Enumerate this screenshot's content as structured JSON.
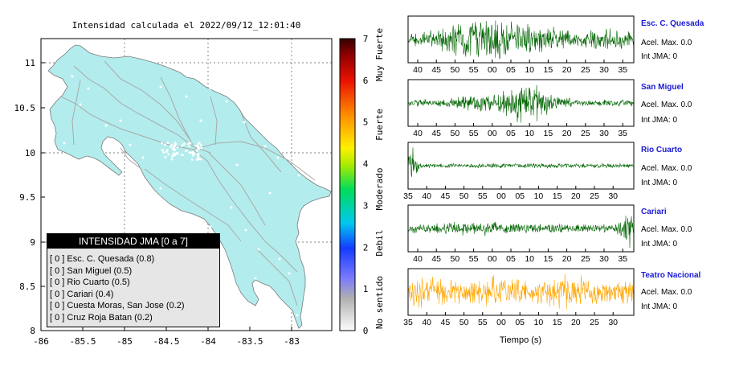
{
  "map": {
    "title": "Intensidad calculada el 2022/09/12_12:01:40",
    "x_ticks": [
      "-86",
      "-85.5",
      "-85",
      "-84.5",
      "-84",
      "-83.5",
      "-83"
    ],
    "y_ticks": [
      "11",
      "10.5",
      "10",
      "9.5",
      "9",
      "8.5",
      "8"
    ],
    "land_color": "#b3ecec",
    "road_color": "#a9a9a9"
  },
  "colorbar": {
    "ticks": [
      "7",
      "6",
      "5",
      "4",
      "3",
      "2",
      "1",
      "0"
    ],
    "labels": [
      "Muy Fuerte",
      "Fuerte",
      "Moderado",
      "Debil",
      "No sentido"
    ]
  },
  "legend": {
    "title": "INTENSIDAD JMA [0 a 7]",
    "entries": [
      "[ 0 ]  Esc. C. Quesada (0.8)",
      "[ 0 ]  San Miguel (0.5)",
      "[ 0 ]  Rio Cuarto (0.5)",
      "[ 0 ]  Cariari (0.4)",
      "[ 0 ]  Cuesta Moras, San Jose (0.2)",
      "[ 0 ]  Cruz Roja Batan (0.2)"
    ]
  },
  "traces": [
    {
      "name": "Esc. C. Quesada",
      "acel": "Acel. Max. 0.0",
      "jma": "Int JMA: 0",
      "color": "#006400",
      "ticks": [
        "40",
        "45",
        "50",
        "55",
        "00",
        "05",
        "10",
        "15",
        "20",
        "25",
        "30",
        "35"
      ]
    },
    {
      "name": "San Miguel",
      "acel": "Acel. Max. 0.0",
      "jma": "Int JMA: 0",
      "color": "#006400",
      "ticks": [
        "40",
        "45",
        "50",
        "55",
        "00",
        "05",
        "10",
        "15",
        "20",
        "25",
        "30",
        "35"
      ]
    },
    {
      "name": "Rio Cuarto",
      "acel": "Acel. Max. 0.0",
      "jma": "Int JMA: 0",
      "color": "#006400",
      "ticks": [
        "35",
        "40",
        "45",
        "50",
        "55",
        "00",
        "05",
        "10",
        "15",
        "20",
        "25",
        "30"
      ]
    },
    {
      "name": "Cariari",
      "acel": "Acel. Max. 0.0",
      "jma": "Int JMA: 0",
      "color": "#006400",
      "ticks": [
        "40",
        "45",
        "50",
        "55",
        "00",
        "05",
        "10",
        "15",
        "20",
        "25",
        "30",
        "35"
      ]
    },
    {
      "name": "Teatro Nacional",
      "acel": "Acel. Max. 0.0",
      "jma": "Int JMA: 0",
      "color": "#ffa500",
      "ticks": [
        "35",
        "40",
        "45",
        "50",
        "55",
        "00",
        "05",
        "10",
        "15",
        "20",
        "25",
        "30"
      ]
    }
  ],
  "xlabel": "Tiempo (s)",
  "chart_data": [
    {
      "type": "scatter",
      "title": "Intensidad calculada el 2022/09/12_12:01:40",
      "xlim": [
        -86,
        -82.5
      ],
      "ylim": [
        8,
        11.3
      ],
      "x_ticks": [
        -86,
        -85.5,
        -85,
        -84.5,
        -84,
        -83.5,
        -83
      ],
      "y_ticks": [
        11,
        10.5,
        10,
        9.5,
        9,
        8.5,
        8
      ],
      "colorbar": {
        "min": 0,
        "max": 7
      }
    },
    {
      "type": "line",
      "series": [
        {
          "name": "Esc. C. Quesada",
          "acel_max": 0.0,
          "int_jma": 0
        },
        {
          "name": "San Miguel",
          "acel_max": 0.0,
          "int_jma": 0
        },
        {
          "name": "Rio Cuarto",
          "acel_max": 0.0,
          "int_jma": 0
        },
        {
          "name": "Cariari",
          "acel_max": 0.0,
          "int_jma": 0
        },
        {
          "name": "Teatro Nacional",
          "acel_max": 0.0,
          "int_jma": 0
        }
      ],
      "xlabel": "Tiempo (s)"
    }
  ]
}
